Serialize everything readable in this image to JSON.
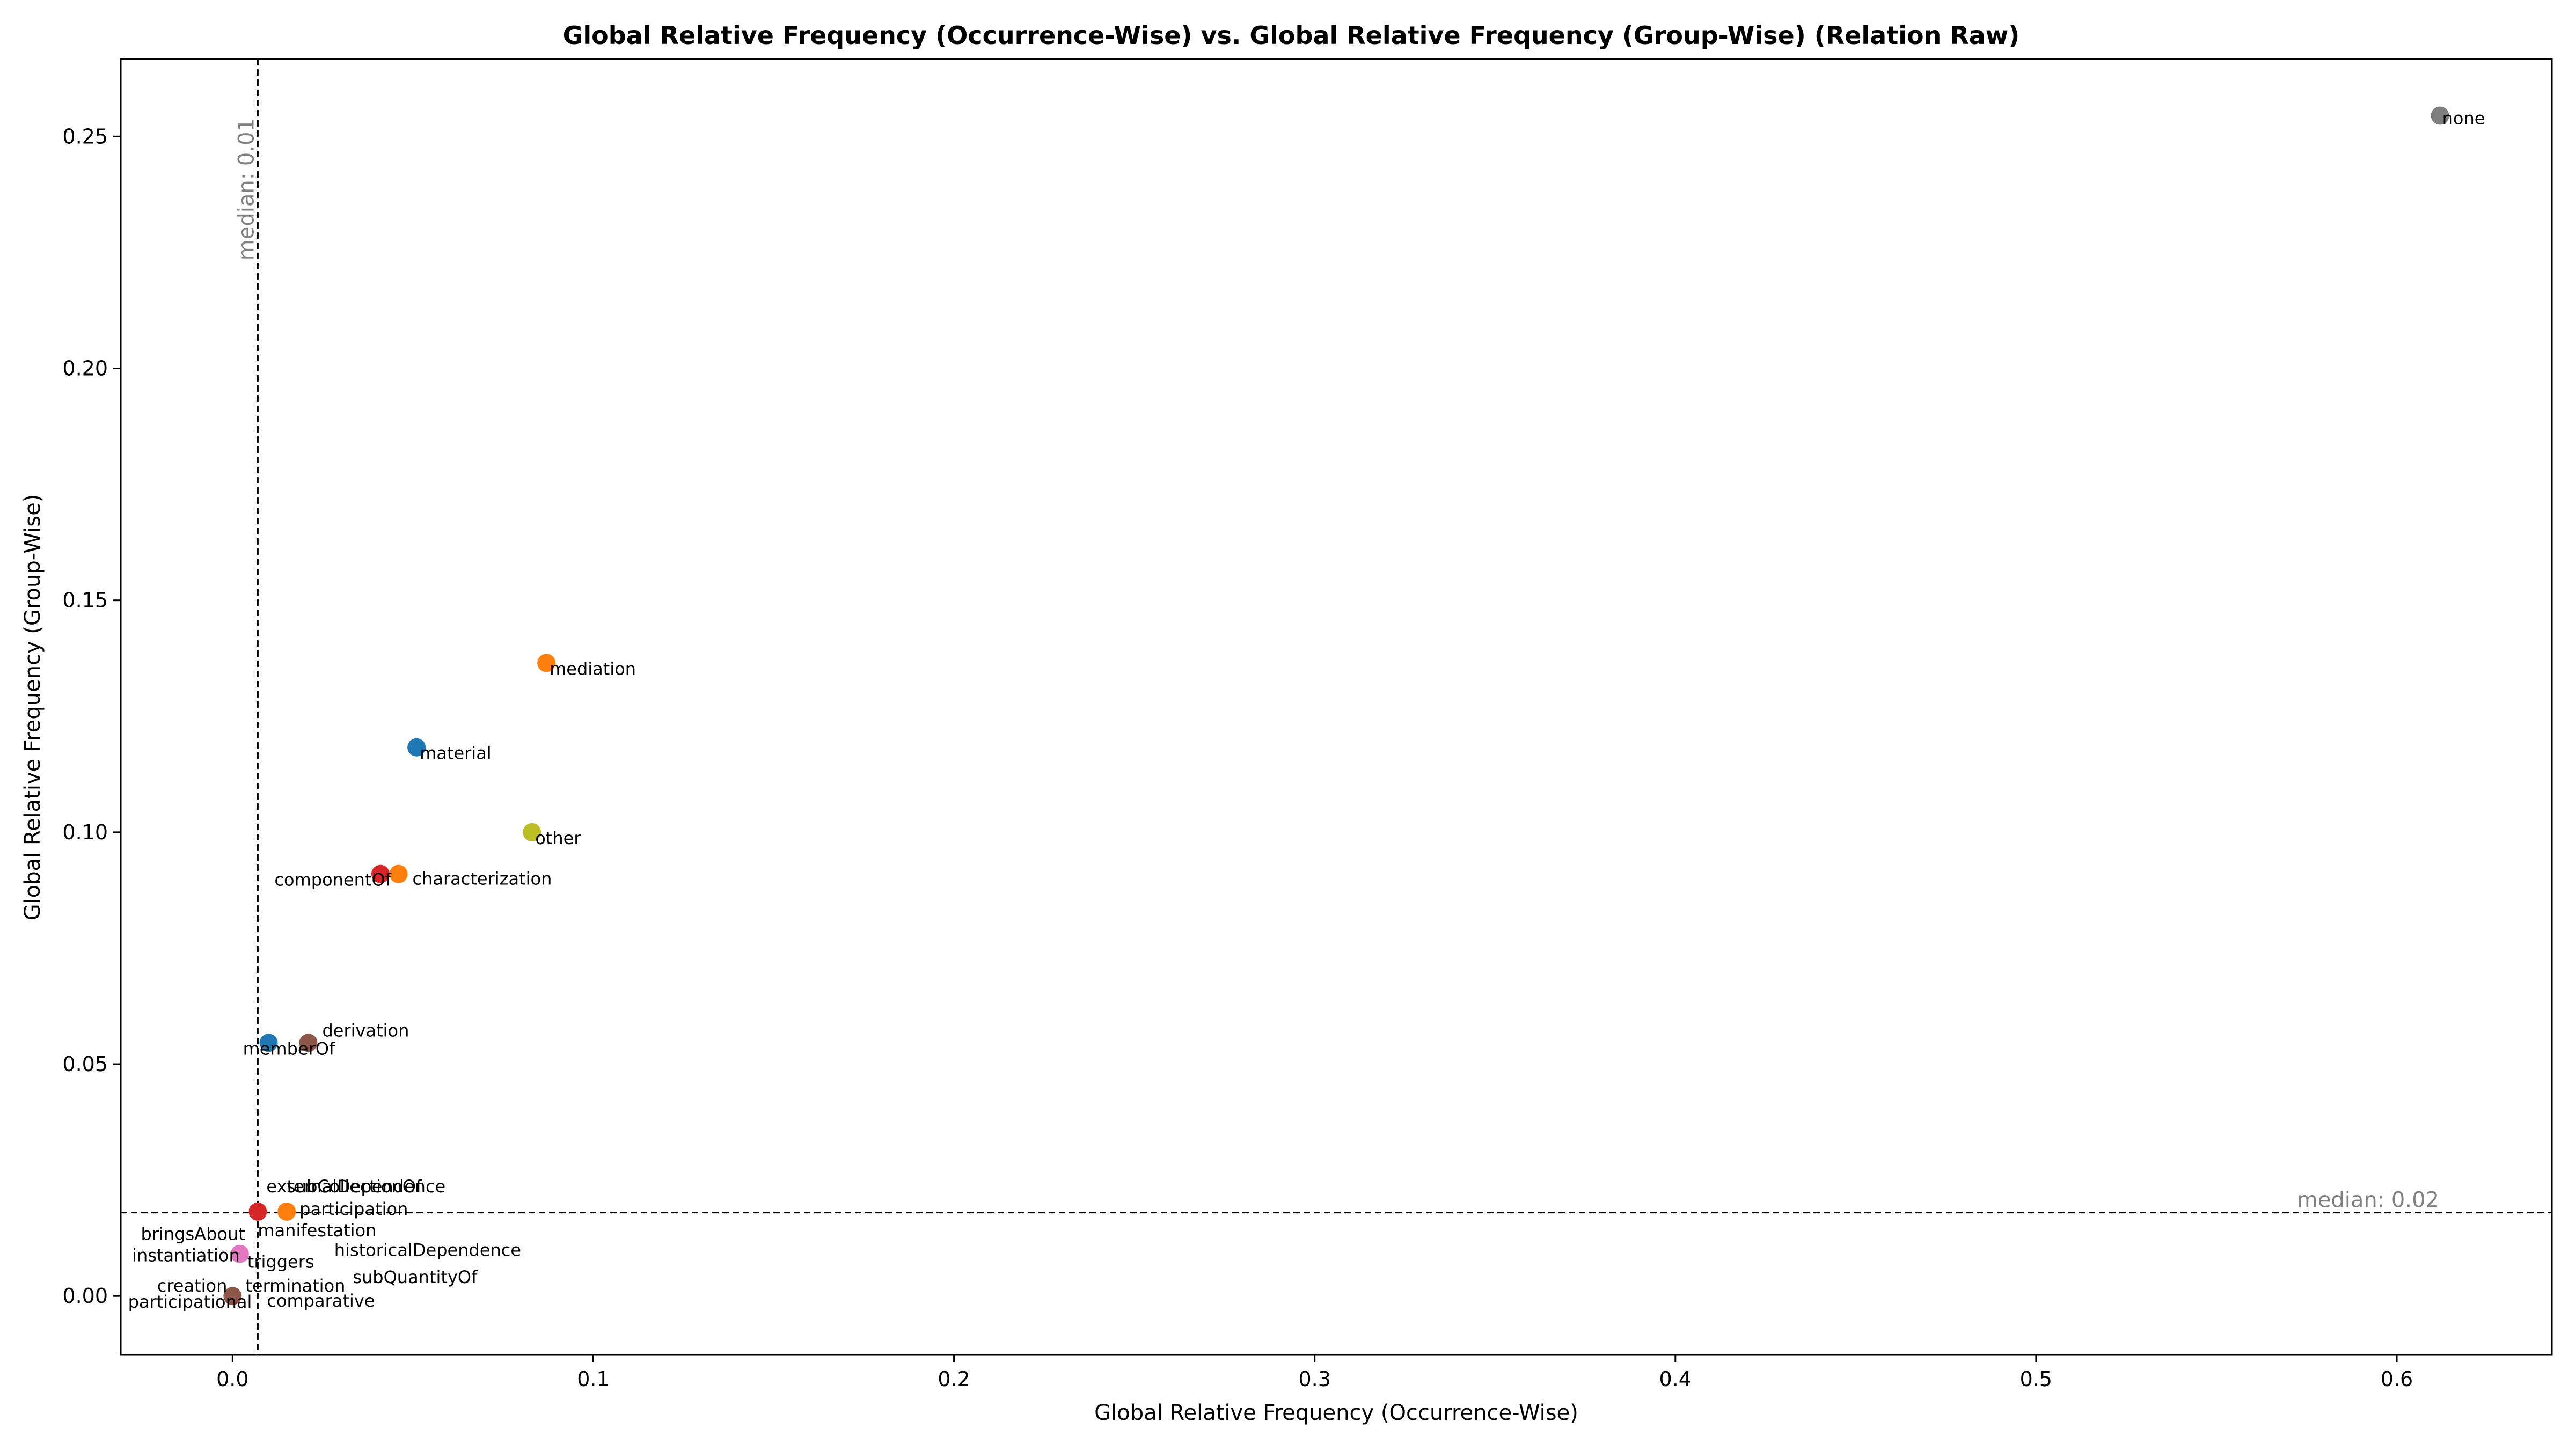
{
  "chart_data": {
    "type": "scatter",
    "title": "Global Relative Frequency (Occurrence-Wise) vs. Global Relative Frequency (Group-Wise) (Relation Raw)",
    "xlabel": "Global Relative Frequency (Occurrence-Wise)",
    "ylabel": "Global Relative Frequency (Group-Wise)",
    "xlim": [
      -0.031,
      0.643
    ],
    "ylim": [
      -0.0127,
      0.2667
    ],
    "xticks": [
      0.0,
      0.1,
      0.2,
      0.3,
      0.4,
      0.5,
      0.6
    ],
    "xtick_labels": [
      "0.0",
      "0.1",
      "0.2",
      "0.3",
      "0.4",
      "0.5",
      "0.6"
    ],
    "yticks": [
      0.0,
      0.05,
      0.1,
      0.15,
      0.2,
      0.25
    ],
    "ytick_labels": [
      "0.00",
      "0.05",
      "0.10",
      "0.15",
      "0.20",
      "0.25"
    ],
    "grid": false,
    "median_x": {
      "value": 0.007,
      "label": "median: 0.01"
    },
    "median_y": {
      "value": 0.018,
      "label": "median: 0.02"
    },
    "points": [
      {
        "label": "none",
        "x": 0.612,
        "y": 0.2545,
        "color": "#7f7f7f"
      },
      {
        "label": "mediation",
        "x": 0.087,
        "y": 0.1365,
        "color": "#ff7f0e"
      },
      {
        "label": "material",
        "x": 0.051,
        "y": 0.1183,
        "color": "#1f77b4"
      },
      {
        "label": "other",
        "x": 0.083,
        "y": 0.1,
        "color": "#bcbd22"
      },
      {
        "label": "componentOf",
        "x": 0.041,
        "y": 0.091,
        "color": "#d62728"
      },
      {
        "label": "characterization",
        "x": 0.046,
        "y": 0.091,
        "color": "#ff7f0e"
      },
      {
        "label": "derivation",
        "x": 0.021,
        "y": 0.0546,
        "color": "#8c564b"
      },
      {
        "label": "memberOf",
        "x": 0.01,
        "y": 0.0546,
        "color": "#1f77b4"
      },
      {
        "label": "externalDependence",
        "x": 0.007,
        "y": 0.0182,
        "color": "#d62728"
      },
      {
        "label": "subCollectionOf",
        "x": 0.015,
        "y": 0.0182,
        "color": "#ff7f0e"
      },
      {
        "label": "participation",
        "x": 0.015,
        "y": 0.0182,
        "color": "#ff7f0e"
      },
      {
        "label": "manifestation",
        "x": 0.007,
        "y": 0.0182,
        "color": "#d62728"
      },
      {
        "label": "bringsAbout",
        "x": 0.002,
        "y": 0.0091,
        "color": "#e377c2"
      },
      {
        "label": "instantiation",
        "x": 0.002,
        "y": 0.0091,
        "color": "#e377c2"
      },
      {
        "label": "triggers",
        "x": 0.002,
        "y": 0.0091,
        "color": "#e377c2"
      },
      {
        "label": "historicalDependence",
        "x": 0.002,
        "y": 0.0091,
        "color": "#e377c2"
      },
      {
        "label": "creation",
        "x": 0.0,
        "y": 0.0,
        "color": "#8c564b"
      },
      {
        "label": "termination",
        "x": 0.0,
        "y": 0.0,
        "color": "#8c564b"
      },
      {
        "label": "subQuantityOf",
        "x": 0.0,
        "y": 0.0,
        "color": "#8c564b"
      },
      {
        "label": "participational",
        "x": 0.0,
        "y": 0.0,
        "color": "#8c564b"
      },
      {
        "label": "comparative",
        "x": 0.0,
        "y": 0.0,
        "color": "#8c564b"
      }
    ]
  }
}
